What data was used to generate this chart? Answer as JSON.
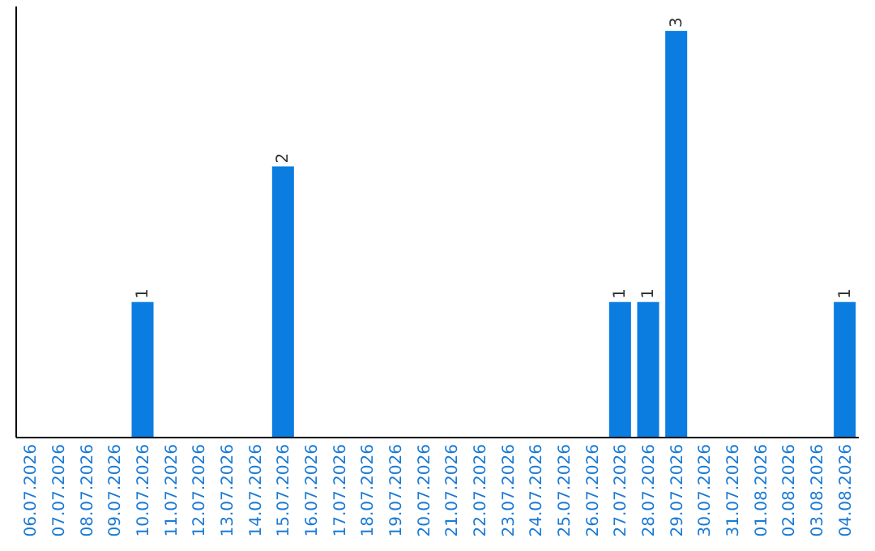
{
  "chart_data": {
    "type": "bar",
    "categories": [
      "06.07.2026",
      "07.07.2026",
      "08.07.2026",
      "09.07.2026",
      "10.07.2026",
      "11.07.2026",
      "12.07.2026",
      "13.07.2026",
      "14.07.2026",
      "15.07.2026",
      "16.07.2026",
      "17.07.2026",
      "18.07.2026",
      "19.07.2026",
      "20.07.2026",
      "21.07.2026",
      "22.07.2026",
      "23.07.2026",
      "24.07.2026",
      "25.07.2026",
      "26.07.2026",
      "27.07.2026",
      "28.07.2026",
      "29.07.2026",
      "30.07.2026",
      "31.07.2026",
      "01.08.2026",
      "02.08.2026",
      "03.08.2026",
      "04.08.2026"
    ],
    "values": [
      0,
      0,
      0,
      0,
      1,
      0,
      0,
      0,
      0,
      2,
      0,
      0,
      0,
      0,
      0,
      0,
      0,
      0,
      0,
      0,
      0,
      1,
      1,
      3,
      0,
      0,
      0,
      0,
      0,
      1
    ],
    "value_labels": [
      null,
      null,
      null,
      null,
      "1",
      null,
      null,
      null,
      null,
      "2",
      null,
      null,
      null,
      null,
      null,
      null,
      null,
      null,
      null,
      null,
      null,
      "1",
      "1",
      "3",
      null,
      null,
      null,
      null,
      null,
      "1"
    ],
    "color": "#0b7ce0",
    "tick_labels": "x"
  }
}
